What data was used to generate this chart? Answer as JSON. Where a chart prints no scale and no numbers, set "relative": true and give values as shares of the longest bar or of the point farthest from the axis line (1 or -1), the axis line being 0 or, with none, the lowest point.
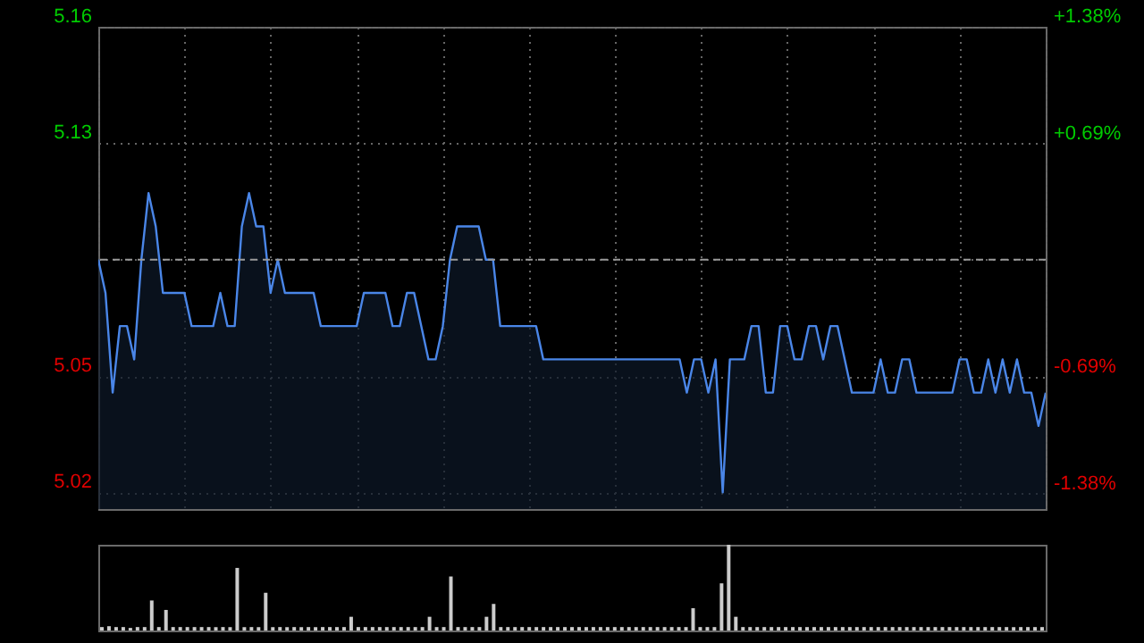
{
  "chart_data": [
    {
      "type": "area",
      "categories": [
        null,
        null,
        null,
        null,
        null,
        null,
        null,
        null,
        null,
        null,
        null,
        null,
        null,
        null,
        null,
        null,
        null,
        null,
        null,
        null,
        null,
        null,
        null,
        null,
        null,
        null,
        null,
        null,
        null,
        null,
        null,
        null,
        null,
        null,
        null,
        null,
        null,
        null,
        null,
        null,
        null,
        null,
        null,
        null,
        null,
        null,
        null,
        null,
        null,
        null,
        null,
        null,
        null,
        null,
        null,
        null,
        null,
        null,
        null,
        null,
        null,
        null,
        null,
        null,
        null,
        null,
        null,
        null,
        null,
        null,
        null,
        null,
        null,
        null,
        null,
        null,
        null,
        null,
        null,
        null,
        null,
        null,
        null,
        null,
        null,
        null,
        null,
        null,
        null,
        null,
        null,
        null,
        null,
        null,
        null,
        null,
        null,
        null,
        null,
        null,
        null,
        null,
        null,
        null,
        null,
        null,
        null,
        null,
        null,
        null,
        null,
        null,
        null,
        null,
        null,
        null,
        null,
        null,
        null,
        null,
        null,
        null,
        null,
        null,
        null,
        null,
        null,
        null,
        null,
        null,
        null,
        null,
        null
      ],
      "series": [
        {
          "color": "#4a86e8",
          "values": [
            5.09,
            5.08,
            5.05,
            5.07,
            5.07,
            5.06,
            5.09,
            5.11,
            5.1,
            5.08,
            5.08,
            5.08,
            5.08,
            5.07,
            5.07,
            5.07,
            5.07,
            5.08,
            5.07,
            5.07,
            5.1,
            5.11,
            5.1,
            5.1,
            5.08,
            5.09,
            5.08,
            5.08,
            5.08,
            5.08,
            5.08,
            5.07,
            5.07,
            5.07,
            5.07,
            5.07,
            5.07,
            5.08,
            5.08,
            5.08,
            5.08,
            5.07,
            5.07,
            5.08,
            5.08,
            5.07,
            5.06,
            5.06,
            5.07,
            5.09,
            5.1,
            5.1,
            5.1,
            5.1,
            5.09,
            5.09,
            5.07,
            5.07,
            5.07,
            5.07,
            5.07,
            5.07,
            5.06,
            5.06,
            5.06,
            5.06,
            5.06,
            5.06,
            5.06,
            5.06,
            5.06,
            5.06,
            5.06,
            5.06,
            5.06,
            5.06,
            5.06,
            5.06,
            5.06,
            5.06,
            5.06,
            5.06,
            5.05,
            5.06,
            5.06,
            5.05,
            5.06,
            5.02,
            5.06,
            5.06,
            5.06,
            5.07,
            5.07,
            5.05,
            5.05,
            5.07,
            5.07,
            5.06,
            5.06,
            5.07,
            5.07,
            5.06,
            5.07,
            5.07,
            5.06,
            5.05,
            5.05,
            5.05,
            5.05,
            5.06,
            5.05,
            5.05,
            5.06,
            5.06,
            5.05,
            5.05,
            5.05,
            5.05,
            5.05,
            5.05,
            5.06,
            5.06,
            5.05,
            5.05,
            5.06,
            5.05,
            5.06,
            5.05,
            5.06,
            5.05,
            5.05,
            5.04,
            5.05
          ]
        }
      ],
      "ylim": [
        5.015,
        5.16
      ],
      "yticks": [
        5.16,
        {
          "value": 5.125,
          "label": "5.13"
        },
        {
          "value": 5.09,
          "label": null
        },
        {
          "value": 5.055,
          "label": "5.05"
        },
        5.02
      ],
      "y2lim": [
        -1.47,
        1.38
      ],
      "y2ticks": [
        {
          "value": 1.38,
          "label": "+1.38%"
        },
        {
          "value": 0.69,
          "label": "+0.69%"
        },
        {
          "value": 0,
          "label": null
        },
        {
          "value": -0.69,
          "label": "-0.69%"
        },
        {
          "value": -1.38,
          "label": "-1.38%"
        }
      ],
      "ref_lines": [
        {
          "axis": "y",
          "value": 5.09,
          "color": "#9a9a9a",
          "line_style": "dashed"
        }
      ],
      "grid": true,
      "tick_labels": "y"
    },
    {
      "type": "bar",
      "relative": true,
      "tick_labels": false,
      "categories": [
        null,
        null,
        null,
        null,
        null,
        null,
        null,
        null,
        null,
        null,
        null,
        null,
        null,
        null,
        null,
        null,
        null,
        null,
        null,
        null,
        null,
        null,
        null,
        null,
        null,
        null,
        null,
        null,
        null,
        null,
        null,
        null,
        null,
        null,
        null,
        null,
        null,
        null,
        null,
        null,
        null,
        null,
        null,
        null,
        null,
        null,
        null,
        null,
        null,
        null,
        null,
        null,
        null,
        null,
        null,
        null,
        null,
        null,
        null,
        null,
        null,
        null,
        null,
        null,
        null,
        null,
        null,
        null,
        null,
        null,
        null,
        null,
        null,
        null,
        null,
        null,
        null,
        null,
        null,
        null,
        null,
        null,
        null,
        null,
        null,
        null,
        null,
        null,
        null,
        null,
        null,
        null,
        null,
        null,
        null,
        null,
        null,
        null,
        null,
        null,
        null,
        null,
        null,
        null,
        null,
        null,
        null,
        null,
        null,
        null,
        null,
        null,
        null,
        null,
        null,
        null,
        null,
        null,
        null,
        null,
        null,
        null,
        null,
        null,
        null,
        null,
        null,
        null,
        null,
        null,
        null,
        null,
        null
      ],
      "series": [
        {
          "color": "#cccccc",
          "values": [
            0.04,
            0.05,
            0.04,
            0.04,
            0.03,
            0.04,
            0.04,
            0.35,
            0.04,
            0.24,
            0.04,
            0.04,
            0.04,
            0.04,
            0.04,
            0.04,
            0.04,
            0.04,
            0.04,
            0.73,
            0.04,
            0.04,
            0.04,
            0.44,
            0.04,
            0.04,
            0.04,
            0.04,
            0.04,
            0.04,
            0.04,
            0.04,
            0.04,
            0.04,
            0.04,
            0.16,
            0.04,
            0.04,
            0.04,
            0.04,
            0.04,
            0.04,
            0.04,
            0.04,
            0.04,
            0.04,
            0.16,
            0.04,
            0.04,
            0.63,
            0.04,
            0.04,
            0.04,
            0.04,
            0.16,
            0.31,
            0.04,
            0.04,
            0.04,
            0.04,
            0.04,
            0.04,
            0.04,
            0.04,
            0.04,
            0.04,
            0.04,
            0.04,
            0.04,
            0.04,
            0.04,
            0.04,
            0.04,
            0.04,
            0.04,
            0.04,
            0.04,
            0.04,
            0.04,
            0.04,
            0.04,
            0.04,
            0.04,
            0.26,
            0.04,
            0.04,
            0.04,
            0.55,
            1,
            0.16,
            0.04,
            0.04,
            0.04,
            0.04,
            0.04,
            0.04,
            0.04,
            0.04,
            0.04,
            0.04,
            0.04,
            0.04,
            0.04,
            0.04,
            0.04,
            0.04,
            0.04,
            0.04,
            0.04,
            0.04,
            0.04,
            0.04,
            0.04,
            0.04,
            0.04,
            0.04,
            0.04,
            0.04,
            0.04,
            0.04,
            0.04,
            0.04,
            0.04,
            0.04,
            0.04,
            0.04,
            0.04,
            0.04,
            0.04,
            0.04,
            0.04,
            0.04,
            0.04
          ]
        }
      ]
    }
  ]
}
